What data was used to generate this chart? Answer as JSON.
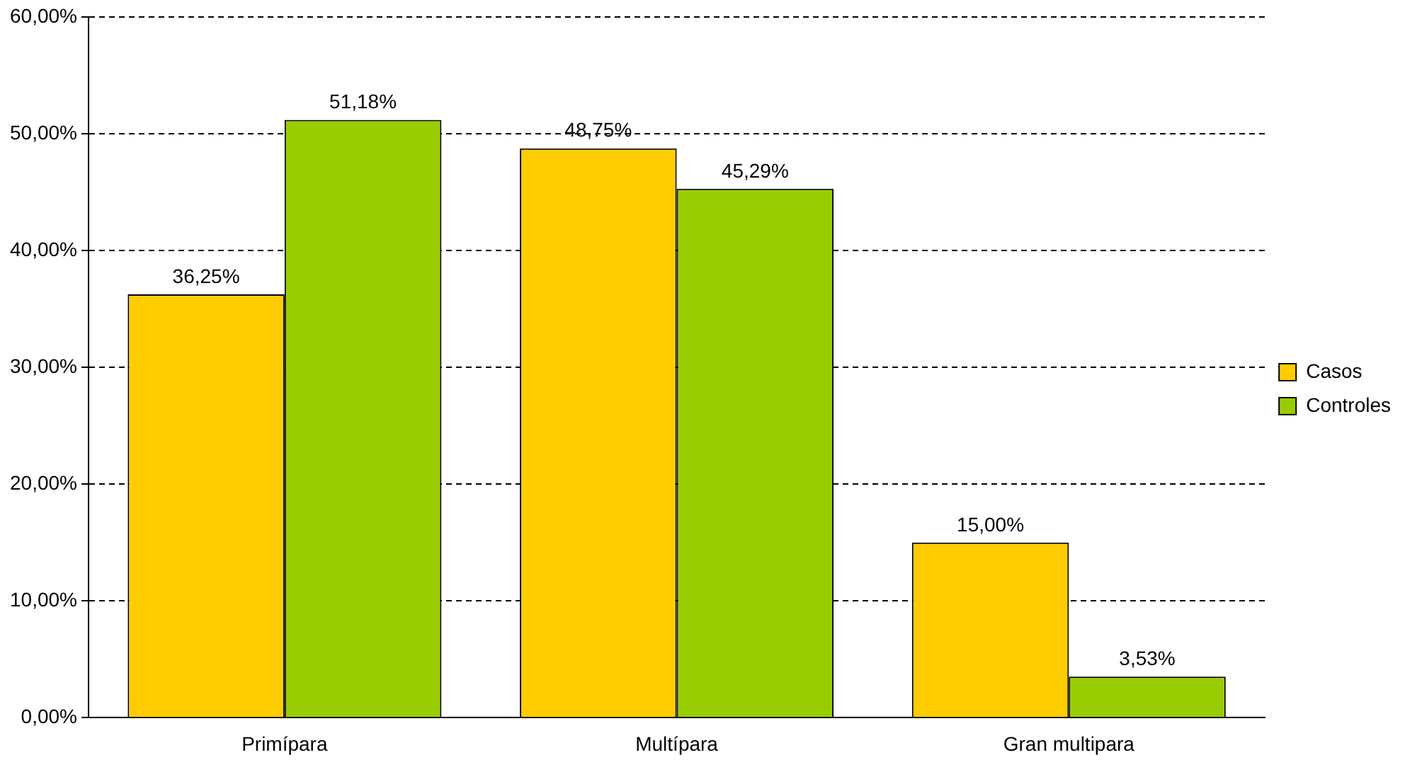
{
  "chart_data": {
    "type": "bar",
    "categories": [
      "Primípara",
      "Multípara",
      "Gran multipara"
    ],
    "series": [
      {
        "name": "Casos",
        "color": "#ffcc00",
        "values": [
          36.25,
          48.75,
          15.0
        ],
        "value_labels": [
          "36,25%",
          "48,75%",
          "15,00%"
        ]
      },
      {
        "name": "Controles",
        "color": "#99cc00",
        "values": [
          51.18,
          45.29,
          3.53
        ],
        "value_labels": [
          "51,18%",
          "45,29%",
          "3,53%"
        ]
      }
    ],
    "ylim": [
      0,
      60
    ],
    "yticks": [
      {
        "value": 0,
        "label": "0,00%"
      },
      {
        "value": 10,
        "label": "10,00%"
      },
      {
        "value": 20,
        "label": "20,00%"
      },
      {
        "value": 30,
        "label": "30,00%"
      },
      {
        "value": 40,
        "label": "40,00%"
      },
      {
        "value": 50,
        "label": "50,00%"
      },
      {
        "value": 60,
        "label": "60,00%"
      }
    ],
    "grid": "y",
    "legend": "right"
  }
}
